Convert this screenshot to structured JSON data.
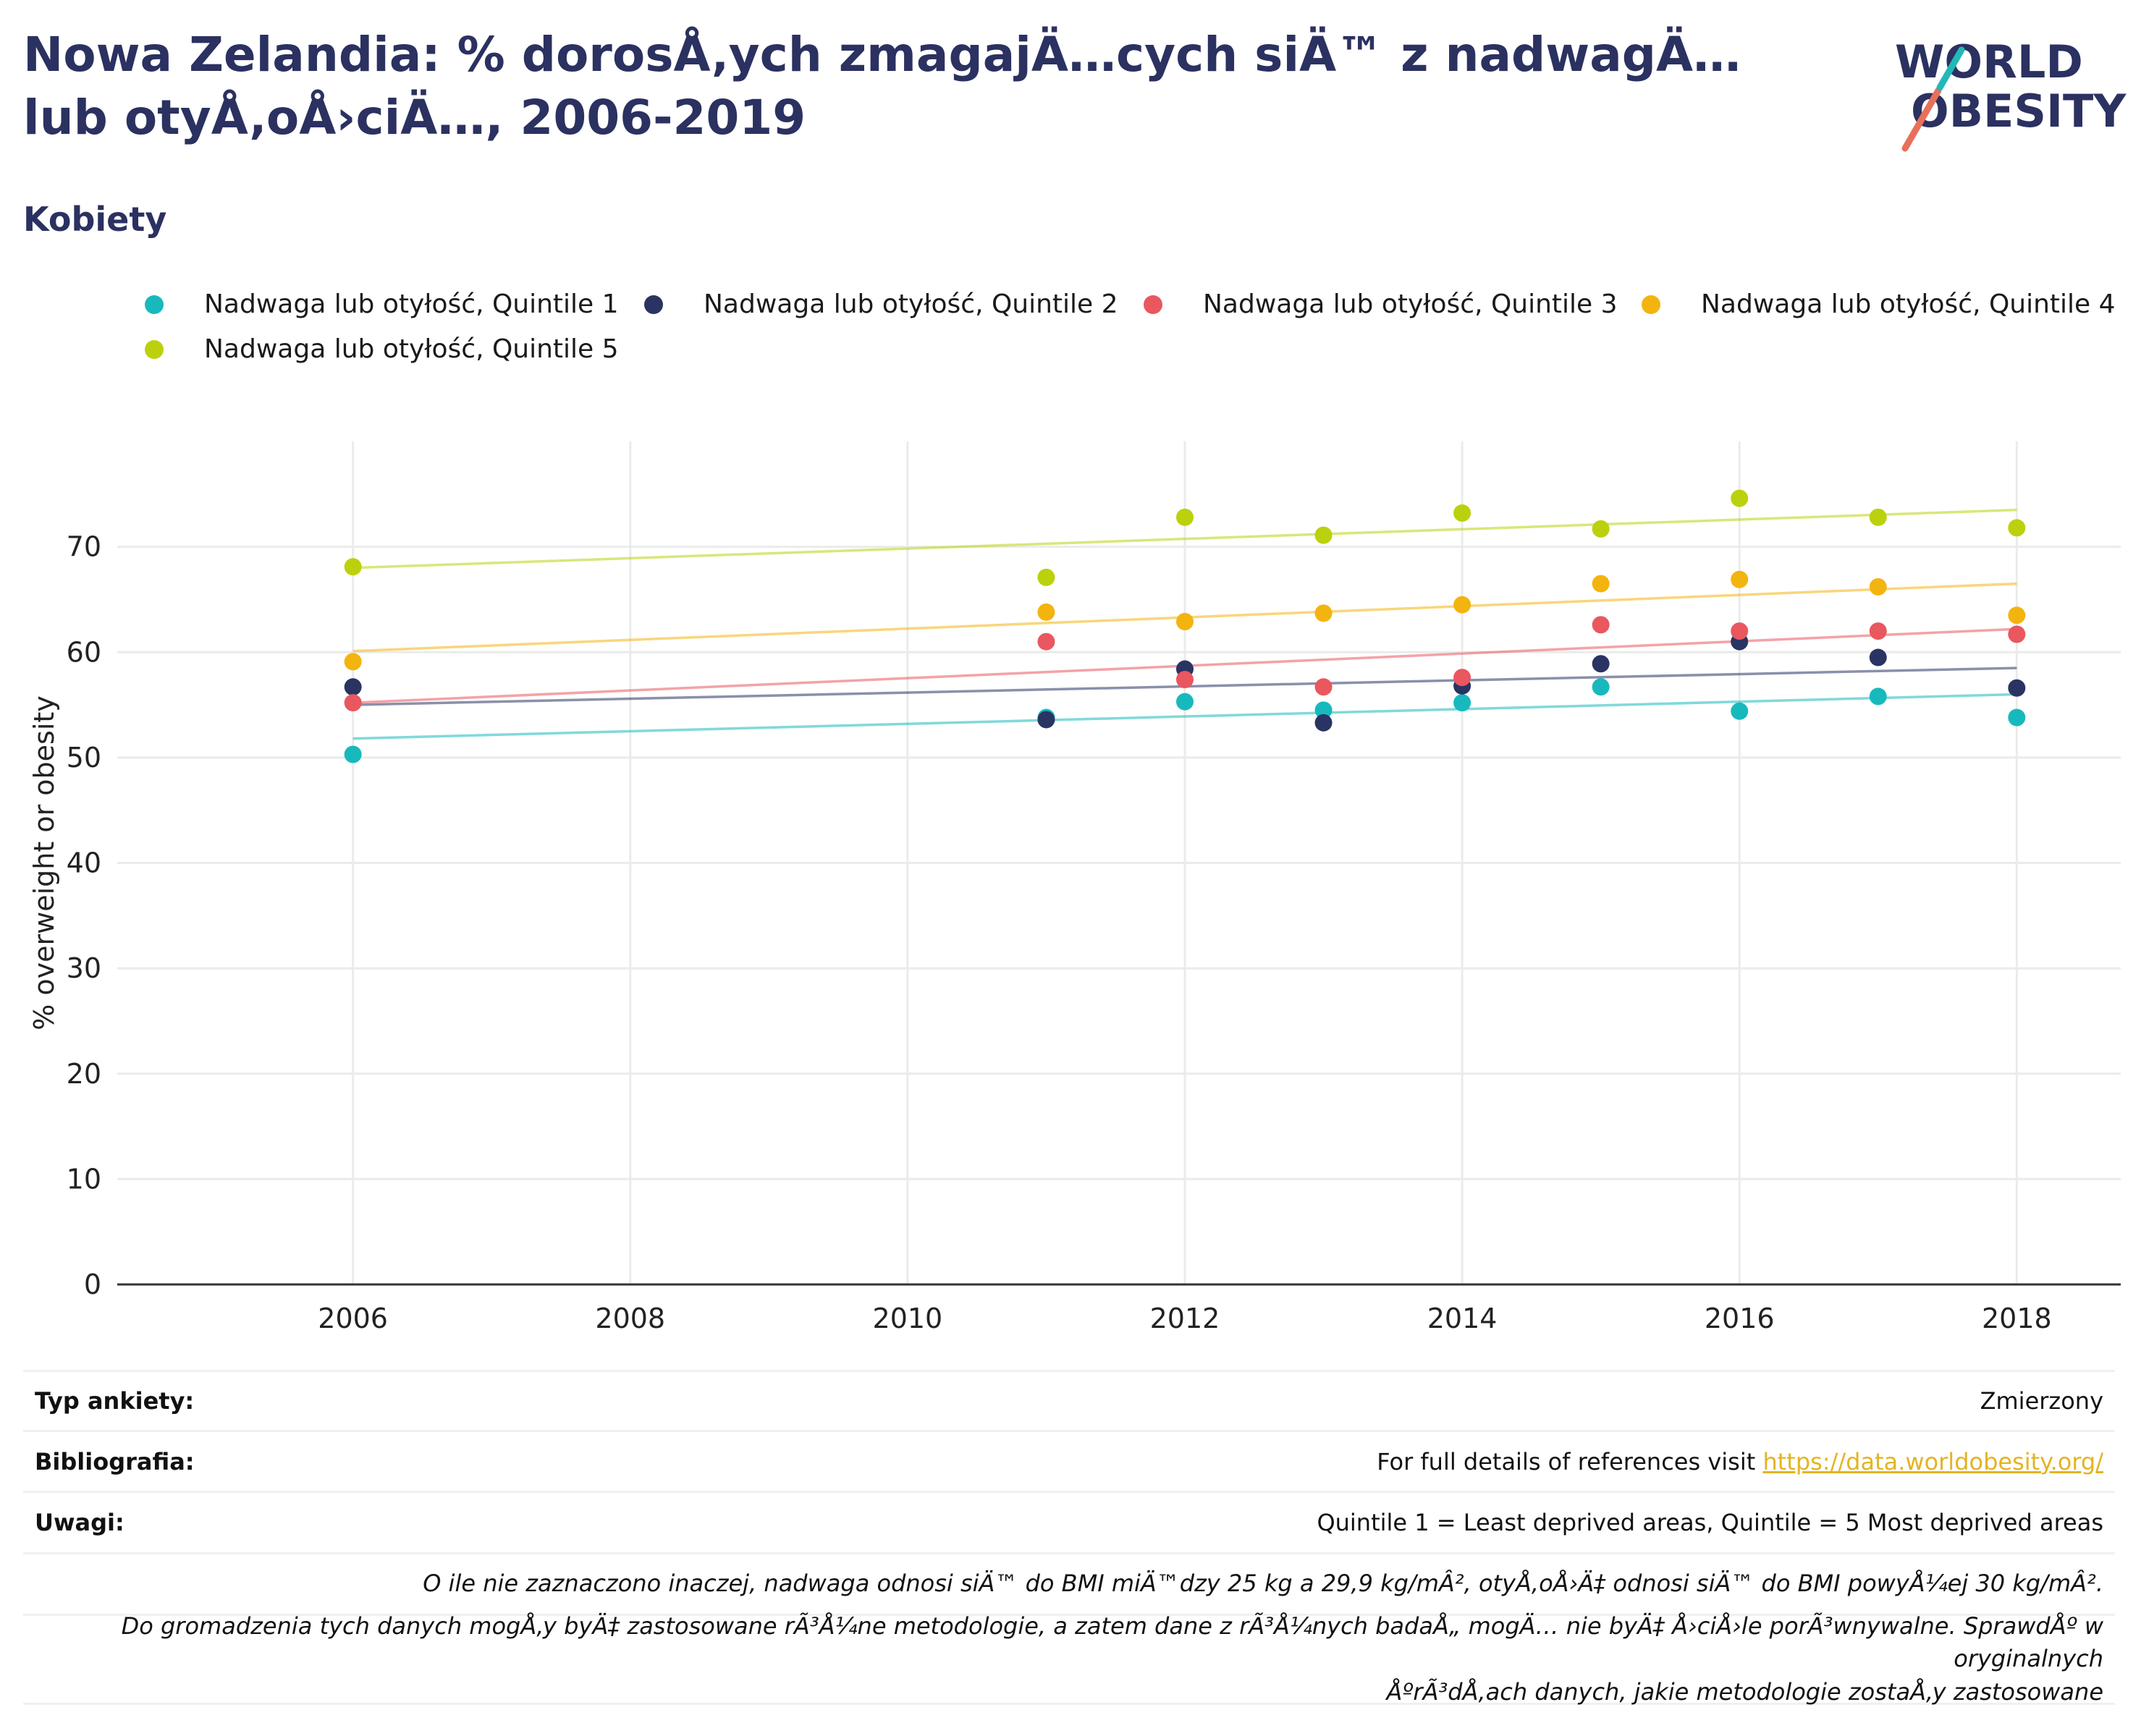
{
  "header": {
    "title": "Nowa Zelandia: % dorosÅ‚ych zmagajÄ…cych siÄ™ z nadwagÄ… lub otyÅ‚oÅ›ciÄ…, 2006-2019",
    "subtitle": "Kobiety"
  },
  "logo": {
    "line1": "WORLD",
    "line2": "OBESITY"
  },
  "colors": {
    "q1": "#17b9bd",
    "q2": "#293462",
    "q3": "#e9575f",
    "q4": "#f4b40f",
    "q5": "#bbd10d"
  },
  "chart_data": {
    "type": "scatter",
    "title": "",
    "xlabel": "",
    "ylabel": "% overweight or obesity",
    "xlim": [
      2004.3,
      2018.75
    ],
    "ylim": [
      0,
      80
    ],
    "xticks": [
      2006,
      2008,
      2010,
      2012,
      2014,
      2016,
      2018
    ],
    "yticks": [
      0,
      10,
      20,
      30,
      40,
      50,
      60,
      70
    ],
    "grid": true,
    "legend_position": "top",
    "series": [
      {
        "name": "Nadwaga lub otyłość, Quintile 1",
        "color": "#17b9bd",
        "x": [
          2006,
          2011,
          2012,
          2013,
          2014,
          2015,
          2016,
          2017,
          2018
        ],
        "y": [
          50.3,
          53.8,
          55.3,
          54.5,
          55.2,
          56.7,
          54.4,
          55.8,
          53.8
        ],
        "trend": [
          51.8,
          56.0
        ]
      },
      {
        "name": "Nadwaga lub otyłość, Quintile 2",
        "color": "#293462",
        "x": [
          2006,
          2011,
          2012,
          2013,
          2014,
          2015,
          2016,
          2017,
          2018
        ],
        "y": [
          56.7,
          53.6,
          58.4,
          53.3,
          56.8,
          58.9,
          61.0,
          59.5,
          56.6
        ],
        "trend": [
          55.0,
          58.5
        ]
      },
      {
        "name": "Nadwaga lub otyłość, Quintile 3",
        "color": "#e9575f",
        "x": [
          2006,
          2011,
          2012,
          2013,
          2014,
          2015,
          2016,
          2017,
          2018
        ],
        "y": [
          55.2,
          61.0,
          57.4,
          56.7,
          57.6,
          62.6,
          62.0,
          62.0,
          61.7
        ],
        "trend": [
          55.2,
          62.2
        ]
      },
      {
        "name": "Nadwaga lub otyłość, Quintile 4",
        "color": "#f4b40f",
        "x": [
          2006,
          2011,
          2012,
          2013,
          2014,
          2015,
          2016,
          2017,
          2018
        ],
        "y": [
          59.1,
          63.8,
          62.9,
          63.7,
          64.5,
          66.5,
          66.9,
          66.2,
          63.5
        ],
        "trend": [
          60.1,
          66.5
        ]
      },
      {
        "name": "Nadwaga lub otyłość, Quintile 5",
        "color": "#bbd10d",
        "x": [
          2006,
          2011,
          2012,
          2013,
          2014,
          2015,
          2016,
          2017,
          2018
        ],
        "y": [
          68.1,
          67.1,
          72.8,
          71.1,
          73.2,
          71.7,
          74.6,
          72.8,
          71.8
        ],
        "trend": [
          68.0,
          73.5
        ]
      }
    ]
  },
  "info": {
    "survey_label": "Typ ankiety:",
    "survey_value": "Zmierzony",
    "biblio_label": "Bibliografia:",
    "biblio_text": "For full details of references visit ",
    "biblio_link": "https://data.worldobesity.org/",
    "notes_label": "Uwagi:",
    "notes_value": "Quintile 1 = Least deprived areas, Quintile = 5 Most deprived areas",
    "note_bmi": "O ile nie zaznaczono inaczej, nadwaga odnosi siÄ™ do BMI miÄ™dzy 25 kg a 29,9 kg/mÂ², otyÅ‚oÅ›Ä‡ odnosi siÄ™ do BMI powyÅ¼ej 30 kg/mÂ².",
    "note_methods_1": "Do gromadzenia tych danych mogÅ‚y byÄ‡ zastosowane rÃ³Å¼ne metodologie, a zatem dane z rÃ³Å¼nych badaÅ„ mogÄ… nie byÄ‡ Å›ciÅ›le porÃ³wnywalne. SprawdÅº w oryginalnych",
    "note_methods_2": "ÅºrÃ³dÅ‚ach danych, jakie metodologie zostaÅ‚y zastosowane"
  }
}
